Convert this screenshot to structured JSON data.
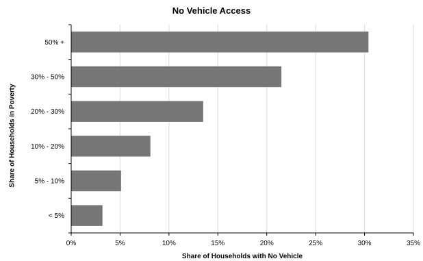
{
  "chart_data": {
    "type": "bar",
    "orientation": "horizontal",
    "title": "No Vehicle Access",
    "xlabel": "Share of Households with No Vehicle",
    "ylabel": "Share of Households in Poverty",
    "categories": [
      "50% +",
      "30% - 50%",
      "20% - 30%",
      "10% - 20%",
      "5% - 10%",
      "< 5%"
    ],
    "values": [
      30.4,
      21.5,
      13.5,
      8.1,
      5.1,
      3.2
    ],
    "xlim": [
      0,
      35
    ],
    "x_ticks": [
      "0%",
      "5%",
      "10%",
      "15%",
      "20%",
      "25%",
      "30%",
      "35%"
    ],
    "grid": true,
    "bar_color": "#767676",
    "gridline_color": "#d9d9d9"
  }
}
